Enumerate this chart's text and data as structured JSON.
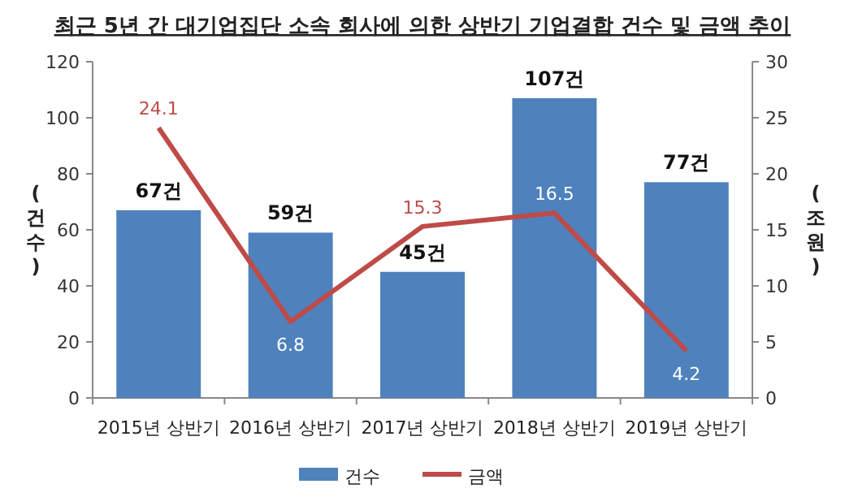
{
  "chart_data": {
    "type": "bar",
    "title": "최근 5년 간 대기업집단 소속 회사에 의한 상반기 기업결합 건수 및 금액 추이",
    "ylabel": "(건수)",
    "y2label": "(조원)",
    "categories": [
      "2015년 상반기",
      "2016년 상반기",
      "2017년 상반기",
      "2018년 상반기",
      "2019년 상반기"
    ],
    "series": [
      {
        "name": "건수",
        "color": "#4f81bd",
        "values": [
          67,
          59,
          45,
          107,
          77
        ],
        "value_labels": [
          "67건",
          "59건",
          "45건",
          "107건",
          "77건"
        ]
      },
      {
        "name": "금액",
        "type": "line",
        "axis": "y2",
        "color": "#be4b48",
        "values": [
          24.1,
          6.8,
          15.3,
          16.5,
          4.2
        ],
        "value_labels": [
          "24.1",
          "6.8",
          "15.3",
          "16.5",
          "4.2"
        ]
      }
    ],
    "ylim": [
      0,
      120
    ],
    "yticks": [
      0,
      20,
      40,
      60,
      80,
      100,
      120
    ],
    "y2lim": [
      0,
      30
    ],
    "y2ticks": [
      0,
      5,
      10,
      15,
      20,
      25,
      30
    ],
    "legend": "bottom",
    "grid": false
  }
}
